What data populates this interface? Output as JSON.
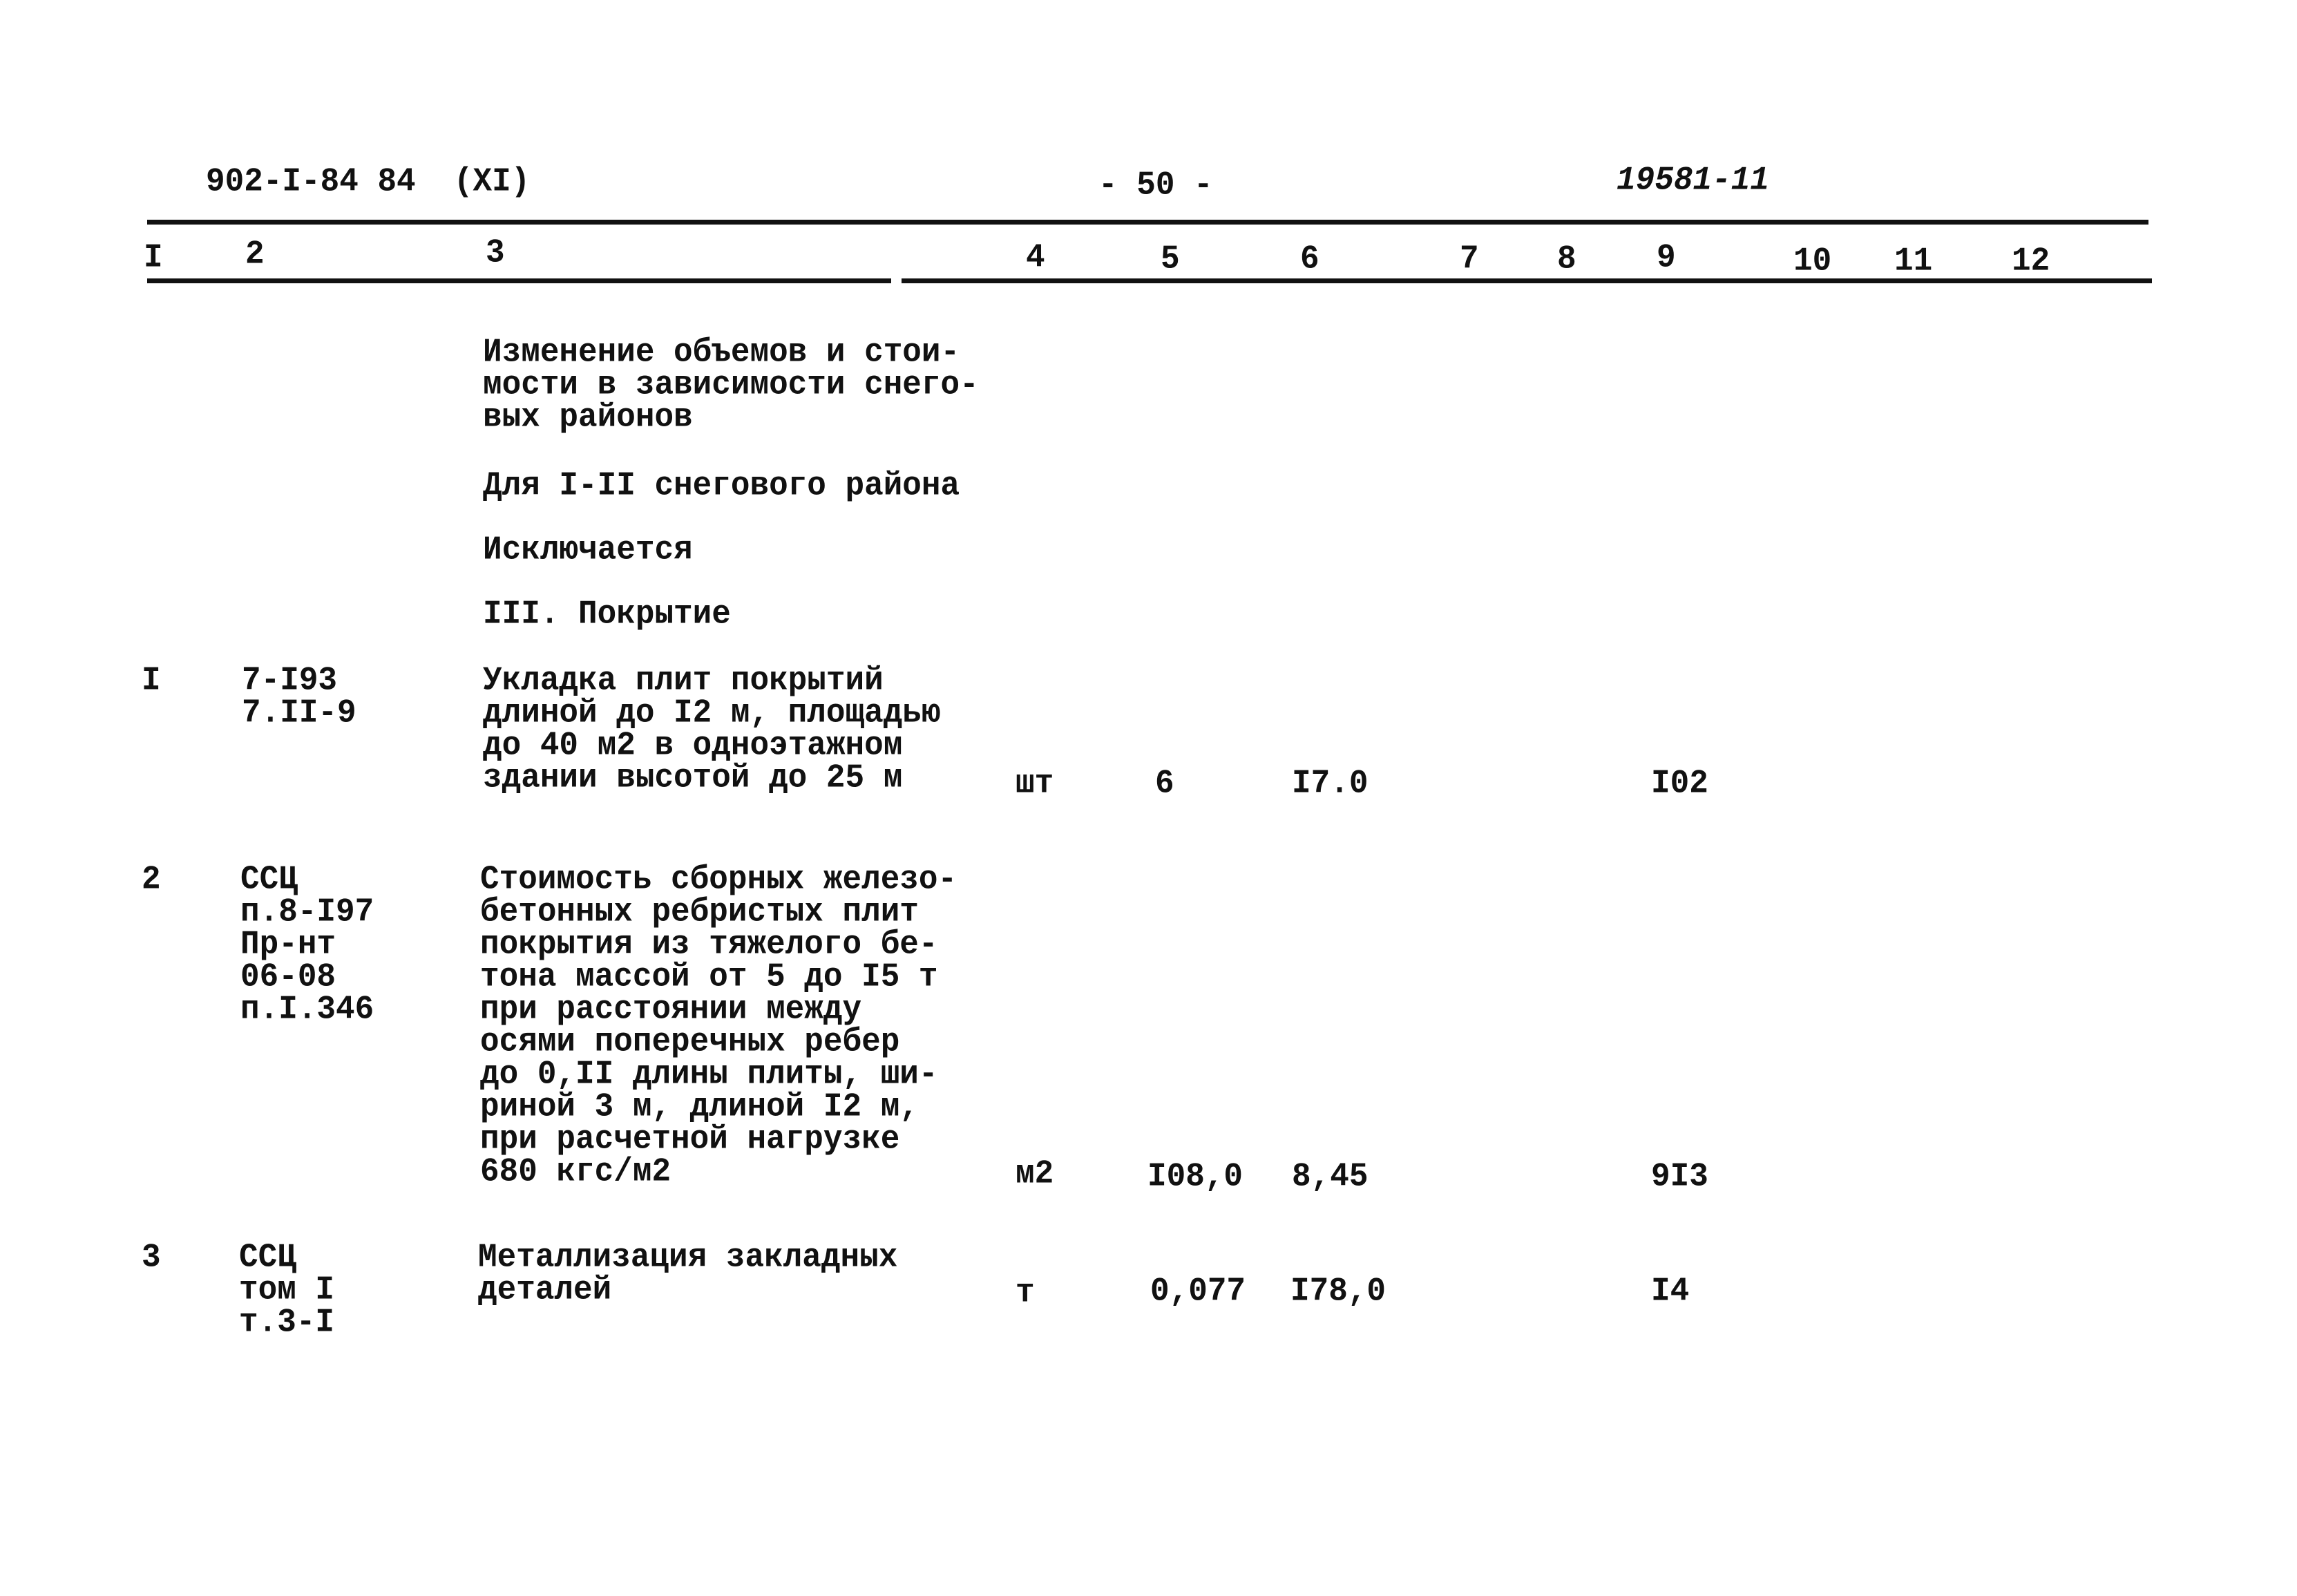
{
  "header": {
    "doc_code": "902-I-84 84  (XI)",
    "page_number": "- 50 -",
    "inventory_number": "19581-11"
  },
  "columns": [
    "I",
    "2",
    "3",
    "4",
    "5",
    "6",
    "7",
    "8",
    "9",
    "10",
    "11",
    "12"
  ],
  "intro": {
    "lines": [
      "Изменение объемов и стои-",
      "мости в зависимости снего-",
      "вых районов"
    ],
    "region": "Для I-II снегового района",
    "excluded": "Исключается",
    "section": "III. Покрытие"
  },
  "rows": [
    {
      "num": "I",
      "ref": [
        "7-I93",
        "7.II-9"
      ],
      "desc": [
        "Укладка плит покрытий",
        "длиной до I2 м, площадью",
        "до 40 м2 в одноэтажном",
        "здании высотой до 25 м"
      ],
      "unit": "шт",
      "qty": "6",
      "price": "I7.0",
      "total": "I02"
    },
    {
      "num": "2",
      "ref": [
        "ССЦ",
        "п.8-I97",
        "Пр-нт",
        "06-08",
        "п.I.346"
      ],
      "desc": [
        "Стоимость сборных железо-",
        "бетонных ребристых плит",
        "покрытия из тяжелого бе-",
        "тона массой от 5 до I5 т",
        "при расстоянии между",
        "осями поперечных ребер",
        "до 0,II длины плиты, ши-",
        "риной 3 м, длиной I2 м,",
        "при расчетной нагрузке",
        "680 кгс/м2"
      ],
      "unit": "м2",
      "qty": "I08,0",
      "price": "8,45",
      "total": "9I3"
    },
    {
      "num": "3",
      "ref": [
        "ССЦ",
        "том I",
        "т.3-I"
      ],
      "desc": [
        "Металлизация закладных",
        "деталей"
      ],
      "unit": "т",
      "qty": "0,077",
      "price": "I78,0",
      "total": "I4"
    }
  ]
}
